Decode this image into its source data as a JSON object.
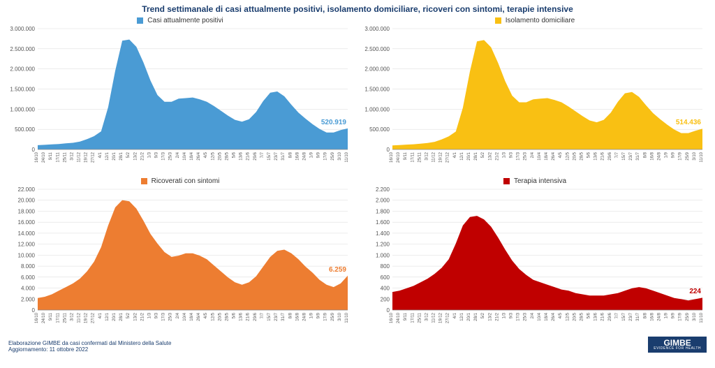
{
  "title": "Trend settimanale di casi attualmente positivi, isolamento domiciliare, ricoveri con sintomi, terapie intensive",
  "footer": {
    "line1": "Elaborazione GIMBE da casi confermati dal Ministero della Salute",
    "line2": "Aggiornamento: 11 ottobre 2022",
    "logo_main": "GIMBE",
    "logo_sub": "EVIDENCE FOR HEALTH"
  },
  "x_labels": [
    "16/10",
    "24/10",
    "9/11",
    "17/11",
    "25/11",
    "3/12",
    "11/12",
    "19/12",
    "27/12",
    "4/1",
    "12/1",
    "20/1",
    "28/1",
    "5/2",
    "13/2",
    "21/2",
    "1/3",
    "9/3",
    "17/3",
    "25/3",
    "2/4",
    "10/4",
    "18/4",
    "26/4",
    "4/5",
    "12/5",
    "20/5",
    "28/5",
    "5/6",
    "13/6",
    "21/6",
    "29/6",
    "7/7",
    "15/7",
    "23/7",
    "31/7",
    "8/8",
    "16/8",
    "24/8",
    "1/9",
    "9/9",
    "17/9",
    "25/9",
    "3/10",
    "11/10"
  ],
  "label_fontsize": 8,
  "grid_color": "#d9d9d9",
  "background_color": "#ffffff",
  "panels": [
    {
      "type": "area",
      "legend": "Casi attualmente positivi",
      "color": "#4a9bd4",
      "end_value_label": "520.919",
      "ymax": 3000000,
      "ystep": 500000,
      "y_format": "millions_dot",
      "data_norm": [
        0.035,
        0.038,
        0.042,
        0.045,
        0.05,
        0.055,
        0.065,
        0.085,
        0.11,
        0.15,
        0.35,
        0.65,
        0.9,
        0.91,
        0.85,
        0.72,
        0.57,
        0.45,
        0.395,
        0.395,
        0.42,
        0.425,
        0.43,
        0.415,
        0.395,
        0.36,
        0.32,
        0.28,
        0.245,
        0.23,
        0.25,
        0.31,
        0.4,
        0.47,
        0.48,
        0.44,
        0.37,
        0.305,
        0.255,
        0.21,
        0.17,
        0.14,
        0.14,
        0.16,
        0.174
      ]
    },
    {
      "type": "area",
      "legend": "Isolamento domiciliare",
      "color": "#f9c013",
      "end_value_label": "514.436",
      "ymax": 3000000,
      "ystep": 500000,
      "y_format": "millions_dot",
      "data_norm": [
        0.033,
        0.036,
        0.04,
        0.043,
        0.048,
        0.053,
        0.063,
        0.083,
        0.108,
        0.148,
        0.345,
        0.645,
        0.895,
        0.905,
        0.845,
        0.715,
        0.565,
        0.445,
        0.39,
        0.39,
        0.415,
        0.42,
        0.425,
        0.41,
        0.39,
        0.355,
        0.315,
        0.275,
        0.24,
        0.225,
        0.245,
        0.305,
        0.395,
        0.465,
        0.475,
        0.435,
        0.365,
        0.3,
        0.25,
        0.205,
        0.165,
        0.135,
        0.135,
        0.155,
        0.171
      ]
    },
    {
      "type": "area",
      "legend": "Ricoverati con sintomi",
      "color": "#ed7d31",
      "end_value_label": "6.259",
      "ymax": 22000,
      "ystep": 2000,
      "y_format": "thousands_dot",
      "data_norm": [
        0.1,
        0.11,
        0.13,
        0.16,
        0.19,
        0.22,
        0.26,
        0.32,
        0.4,
        0.52,
        0.7,
        0.85,
        0.91,
        0.9,
        0.84,
        0.74,
        0.63,
        0.55,
        0.48,
        0.44,
        0.45,
        0.47,
        0.47,
        0.45,
        0.42,
        0.37,
        0.32,
        0.27,
        0.23,
        0.21,
        0.23,
        0.28,
        0.36,
        0.44,
        0.49,
        0.5,
        0.47,
        0.42,
        0.36,
        0.31,
        0.25,
        0.21,
        0.19,
        0.22,
        0.285
      ]
    },
    {
      "type": "area",
      "legend": "Terapia intensiva",
      "color": "#c00000",
      "end_value_label": "224",
      "ymax": 2200,
      "ystep": 200,
      "y_format": "plain_dot",
      "data_norm": [
        0.15,
        0.16,
        0.18,
        0.2,
        0.23,
        0.26,
        0.3,
        0.35,
        0.42,
        0.55,
        0.7,
        0.77,
        0.78,
        0.75,
        0.69,
        0.6,
        0.5,
        0.41,
        0.34,
        0.29,
        0.25,
        0.23,
        0.21,
        0.19,
        0.17,
        0.16,
        0.14,
        0.13,
        0.12,
        0.12,
        0.12,
        0.13,
        0.14,
        0.16,
        0.18,
        0.19,
        0.18,
        0.16,
        0.14,
        0.12,
        0.1,
        0.09,
        0.08,
        0.09,
        0.102
      ]
    }
  ]
}
